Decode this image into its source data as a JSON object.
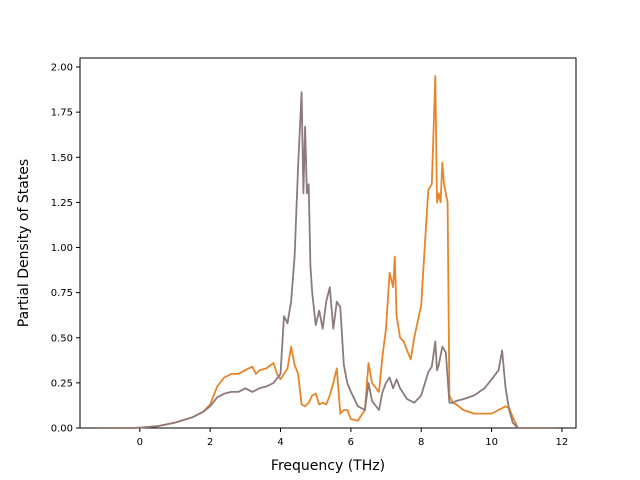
{
  "chart_data": {
    "type": "line",
    "title": "",
    "xlabel": "Frequency (THz)",
    "ylabel": "Partial Density of States",
    "xlim": [
      -1.7,
      12.4
    ],
    "ylim": [
      0.0,
      2.05
    ],
    "xticks": [
      0,
      2,
      4,
      6,
      8,
      10,
      12
    ],
    "yticks": [
      0.0,
      0.25,
      0.5,
      0.75,
      1.0,
      1.25,
      1.5,
      1.75,
      2.0
    ],
    "xtick_labels": [
      "0",
      "2",
      "4",
      "6",
      "8",
      "10",
      "12"
    ],
    "ytick_labels": [
      "0.00",
      "0.25",
      "0.50",
      "0.75",
      "1.00",
      "1.25",
      "1.50",
      "1.75",
      "2.00"
    ],
    "grid": false,
    "legend": "none",
    "series": [
      {
        "color": "#e8842a",
        "x": [
          -1.2,
          -0.2,
          0.0,
          0.5,
          1.0,
          1.5,
          1.8,
          2.0,
          2.2,
          2.4,
          2.6,
          2.8,
          3.0,
          3.2,
          3.3,
          3.4,
          3.6,
          3.8,
          3.9,
          4.0,
          4.2,
          4.3,
          4.4,
          4.5,
          4.6,
          4.7,
          4.8,
          4.9,
          5.0,
          5.1,
          5.2,
          5.3,
          5.4,
          5.5,
          5.6,
          5.7,
          5.8,
          5.9,
          6.0,
          6.2,
          6.4,
          6.5,
          6.6,
          6.8,
          6.9,
          7.0,
          7.1,
          7.2,
          7.25,
          7.3,
          7.4,
          7.5,
          7.7,
          7.8,
          8.0,
          8.1,
          8.2,
          8.3,
          8.4,
          8.45,
          8.5,
          8.55,
          8.6,
          8.65,
          8.7,
          8.75,
          8.8,
          8.9,
          9.0,
          9.2,
          9.5,
          9.8,
          10.0,
          10.2,
          10.4,
          10.5,
          10.6,
          10.7,
          10.75,
          11.0,
          11.8
        ],
        "y": [
          0.0,
          0.0,
          0.002,
          0.01,
          0.03,
          0.06,
          0.09,
          0.13,
          0.23,
          0.28,
          0.3,
          0.3,
          0.32,
          0.34,
          0.3,
          0.32,
          0.33,
          0.36,
          0.3,
          0.27,
          0.33,
          0.45,
          0.35,
          0.3,
          0.13,
          0.12,
          0.14,
          0.18,
          0.19,
          0.13,
          0.14,
          0.13,
          0.18,
          0.25,
          0.33,
          0.08,
          0.1,
          0.1,
          0.05,
          0.04,
          0.1,
          0.36,
          0.25,
          0.2,
          0.4,
          0.55,
          0.86,
          0.78,
          0.95,
          0.62,
          0.5,
          0.48,
          0.38,
          0.5,
          0.68,
          1.0,
          1.32,
          1.35,
          1.95,
          1.25,
          1.3,
          1.25,
          1.47,
          1.35,
          1.3,
          1.25,
          0.18,
          0.14,
          0.13,
          0.1,
          0.08,
          0.08,
          0.08,
          0.1,
          0.12,
          0.11,
          0.06,
          0.02,
          0.0,
          0.0,
          0.0
        ]
      },
      {
        "color": "#8c7b7b",
        "x": [
          -1.2,
          -0.2,
          0.0,
          0.5,
          1.0,
          1.5,
          1.8,
          2.0,
          2.2,
          2.4,
          2.6,
          2.8,
          3.0,
          3.2,
          3.4,
          3.6,
          3.8,
          4.0,
          4.1,
          4.2,
          4.3,
          4.4,
          4.5,
          4.6,
          4.65,
          4.7,
          4.75,
          4.8,
          4.85,
          4.9,
          5.0,
          5.1,
          5.2,
          5.3,
          5.4,
          5.5,
          5.6,
          5.7,
          5.8,
          5.9,
          6.0,
          6.2,
          6.4,
          6.5,
          6.6,
          6.8,
          6.9,
          7.0,
          7.1,
          7.2,
          7.3,
          7.4,
          7.6,
          7.8,
          8.0,
          8.2,
          8.3,
          8.4,
          8.45,
          8.5,
          8.6,
          8.7,
          8.8,
          8.9,
          9.0,
          9.2,
          9.5,
          9.8,
          10.0,
          10.2,
          10.3,
          10.4,
          10.5,
          10.6,
          10.75,
          11.0,
          11.8
        ],
        "y": [
          0.0,
          0.0,
          0.002,
          0.01,
          0.03,
          0.06,
          0.09,
          0.12,
          0.17,
          0.19,
          0.2,
          0.2,
          0.22,
          0.2,
          0.22,
          0.23,
          0.25,
          0.3,
          0.62,
          0.58,
          0.7,
          0.95,
          1.45,
          1.86,
          1.3,
          1.67,
          1.3,
          1.35,
          0.9,
          0.75,
          0.57,
          0.65,
          0.55,
          0.7,
          0.78,
          0.55,
          0.7,
          0.67,
          0.35,
          0.25,
          0.2,
          0.12,
          0.1,
          0.25,
          0.15,
          0.1,
          0.2,
          0.25,
          0.28,
          0.22,
          0.27,
          0.22,
          0.16,
          0.14,
          0.18,
          0.31,
          0.34,
          0.48,
          0.32,
          0.35,
          0.45,
          0.42,
          0.14,
          0.14,
          0.15,
          0.16,
          0.18,
          0.22,
          0.27,
          0.32,
          0.43,
          0.22,
          0.1,
          0.03,
          0.0,
          0.0,
          0.0
        ]
      }
    ]
  }
}
